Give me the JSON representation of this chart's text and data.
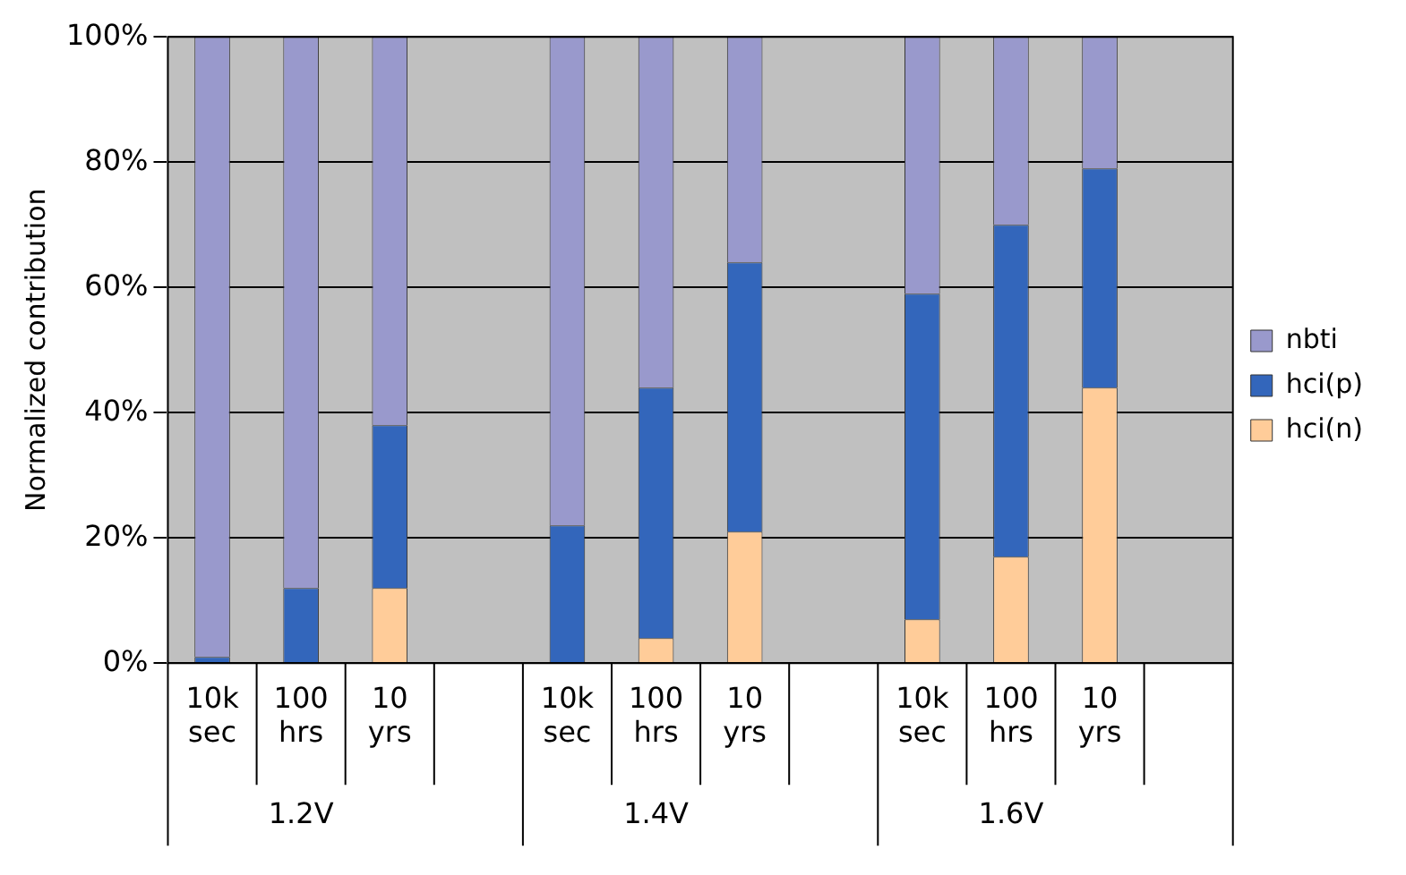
{
  "chart_data": {
    "type": "bar",
    "stacked": true,
    "ylabel": "Normalized contribution",
    "categories": [
      "10k sec",
      "100 hrs",
      "10 yrs",
      null,
      "10k sec",
      "100 hrs",
      "10 yrs",
      null,
      "10k sec",
      "100 hrs",
      "10 yrs",
      null
    ],
    "series": [
      {
        "name": "hci(n)",
        "color": "#ffcc99",
        "values": [
          0,
          0,
          12,
          null,
          0,
          4,
          21,
          null,
          7,
          17,
          44,
          null
        ]
      },
      {
        "name": "hci(p)",
        "color": "#3366bb",
        "values": [
          1,
          12,
          26,
          null,
          22,
          40,
          43,
          null,
          52,
          53,
          35,
          null
        ]
      },
      {
        "name": "nbti",
        "color": "#9999cc",
        "values": [
          99,
          88,
          62,
          null,
          78,
          56,
          36,
          null,
          41,
          30,
          21,
          null
        ]
      }
    ],
    "ylim": [
      0,
      100
    ],
    "yticks": [
      {
        "value": 0,
        "label": "0%"
      },
      {
        "value": 20,
        "label": "20%"
      },
      {
        "value": 40,
        "label": "40%"
      },
      {
        "value": 60,
        "label": "60%"
      },
      {
        "value": 80,
        "label": "80%"
      },
      {
        "value": 100,
        "label": "100%"
      }
    ],
    "grid": "y",
    "legend": "right",
    "annotations": [
      "1.2V",
      "1.4V",
      "1.6V"
    ]
  }
}
